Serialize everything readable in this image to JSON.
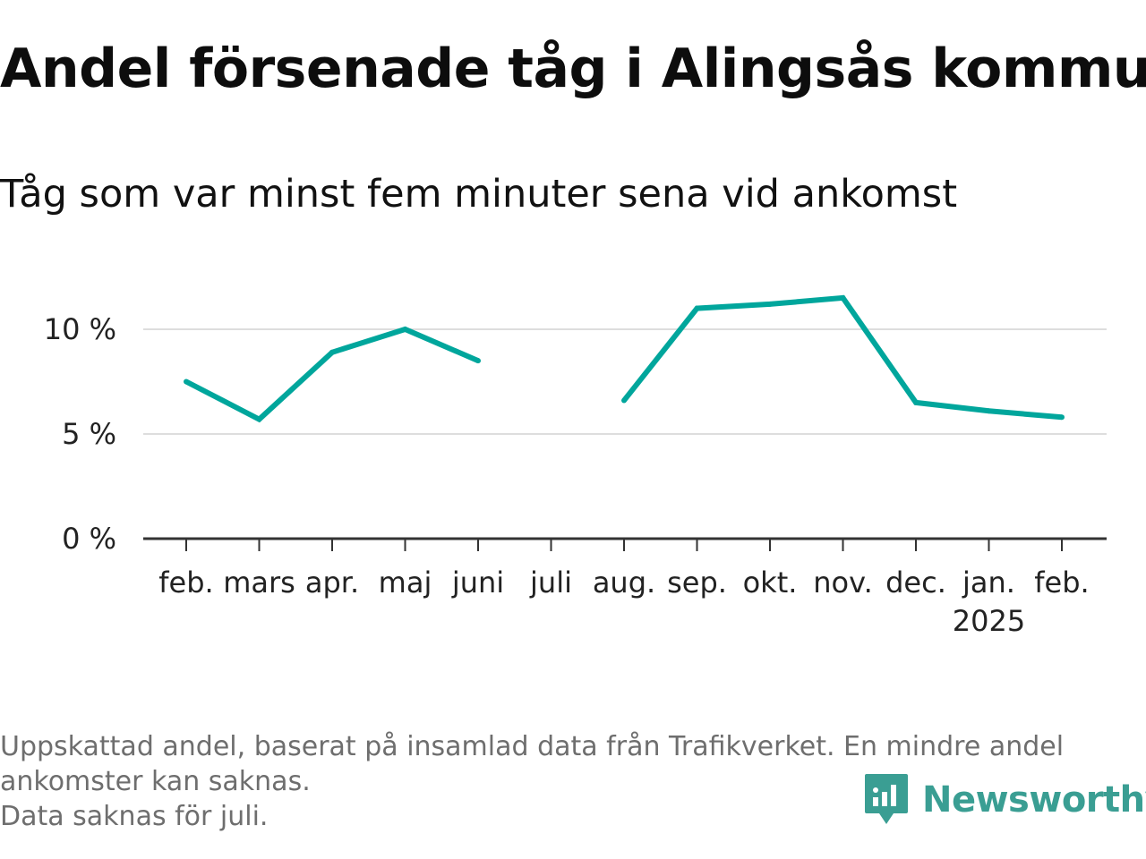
{
  "header": {
    "title": "Andel försenade tåg i Alingsås kommun",
    "subtitle": "Tåg som var minst fem minuter sena vid ankomst"
  },
  "chart_data": {
    "type": "line",
    "title": "Andel försenade tåg i Alingsås kommun",
    "subtitle": "Tåg som var minst fem minuter sena vid ankomst",
    "categories": [
      "feb.",
      "mars",
      "apr.",
      "maj",
      "juni",
      "juli",
      "aug.",
      "sep.",
      "okt.",
      "nov.",
      "dec.",
      "jan.",
      "feb."
    ],
    "category_sublabels": [
      "",
      "",
      "",
      "",
      "",
      "",
      "",
      "",
      "",
      "",
      "",
      "2025",
      ""
    ],
    "series": [
      {
        "values": [
          7.5,
          5.7,
          8.9,
          10.0,
          8.5,
          null,
          6.6,
          11.0,
          11.2,
          11.5,
          6.5,
          6.1,
          5.8
        ],
        "color": "#00a69c"
      }
    ],
    "y_ticks": [
      0,
      5,
      10
    ],
    "y_tick_labels": [
      "0 %",
      "5 %",
      "10 %"
    ],
    "ylim": [
      0,
      12
    ],
    "grid": true,
    "legend": "none"
  },
  "footer": {
    "note_line1": "Uppskattad andel, baserat på insamlad data från Trafikverket. En mindre andel",
    "note_line2": "ankomster kan saknas.",
    "note_line3": "Data saknas för juli.",
    "brand_name": "Newsworthy",
    "brand_icon": "newsworthy-logo-icon",
    "brand_color": "#3a9e93"
  }
}
